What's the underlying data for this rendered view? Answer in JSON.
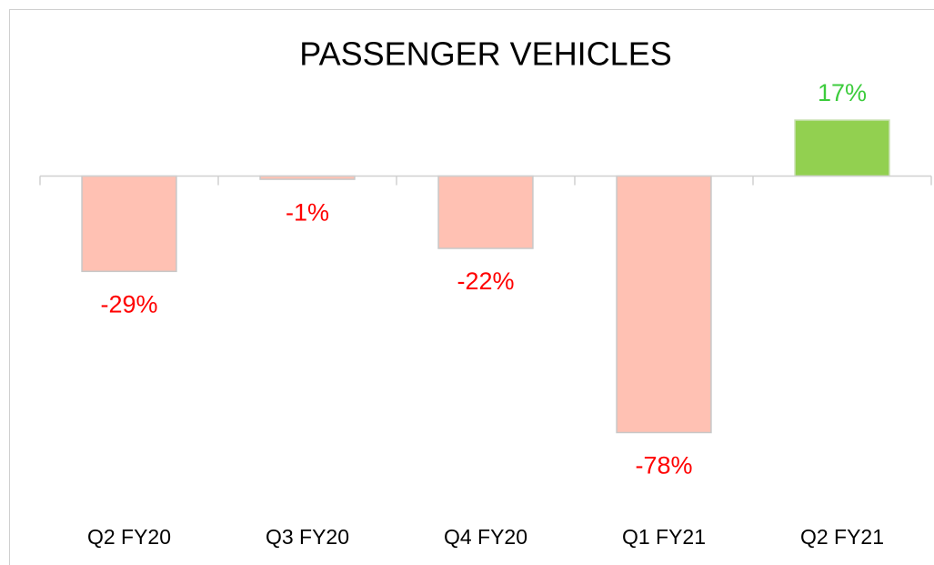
{
  "chart_data": {
    "type": "bar",
    "title": "PASSENGER VEHICLES",
    "categories": [
      "Q2 FY20",
      "Q3 FY20",
      "Q4 FY20",
      "Q1 FY21",
      "Q2 FY21"
    ],
    "values": [
      -29,
      -1,
      -22,
      -78,
      17
    ],
    "value_labels": [
      "-29%",
      "-1%",
      "-22%",
      "-78%",
      "17%"
    ],
    "colors": [
      "#ffc1b3",
      "#ffc1b3",
      "#ffc1b3",
      "#ffc1b3",
      "#92d050"
    ],
    "label_colors": [
      "#ff0000",
      "#ff0000",
      "#ff0000",
      "#ff0000",
      "#3dcc3d"
    ],
    "ylim": [
      -100,
      30
    ]
  }
}
